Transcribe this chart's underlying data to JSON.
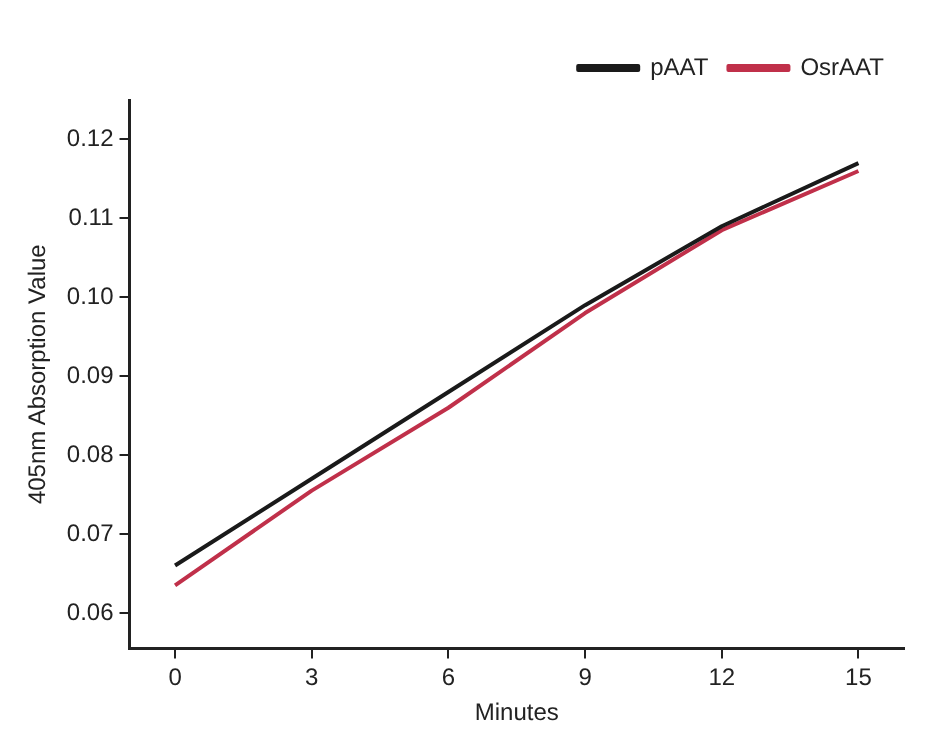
{
  "chart_data": {
    "type": "line",
    "xlabel": "Minutes",
    "ylabel": "405nm Absorption Value",
    "x": [
      0,
      3,
      6,
      9,
      12,
      15
    ],
    "series": [
      {
        "name": "pAAT",
        "color": "#1a1a1a",
        "values": [
          0.066,
          0.077,
          0.088,
          0.099,
          0.109,
          0.117
        ]
      },
      {
        "name": "OsrAAT",
        "color": "#c0304a",
        "values": [
          0.0635,
          0.0755,
          0.086,
          0.098,
          0.1085,
          0.116
        ]
      }
    ],
    "xlim": [
      -1,
      16
    ],
    "xticks": [
      0,
      3,
      6,
      9,
      12,
      15
    ],
    "ylim": [
      0.0555,
      0.125
    ],
    "yticks": [
      {
        "value": 0.06,
        "label": "0.06"
      },
      {
        "value": 0.07,
        "label": "0.07"
      },
      {
        "value": 0.08,
        "label": "0.08"
      },
      {
        "value": 0.09,
        "label": "0.09"
      },
      {
        "value": 0.1,
        "label": "0.10"
      },
      {
        "value": 0.11,
        "label": "0.11"
      },
      {
        "value": 0.12,
        "label": "0.12"
      }
    ],
    "grid": false,
    "legend": "top right",
    "marker": "none",
    "line_style": "solid"
  }
}
